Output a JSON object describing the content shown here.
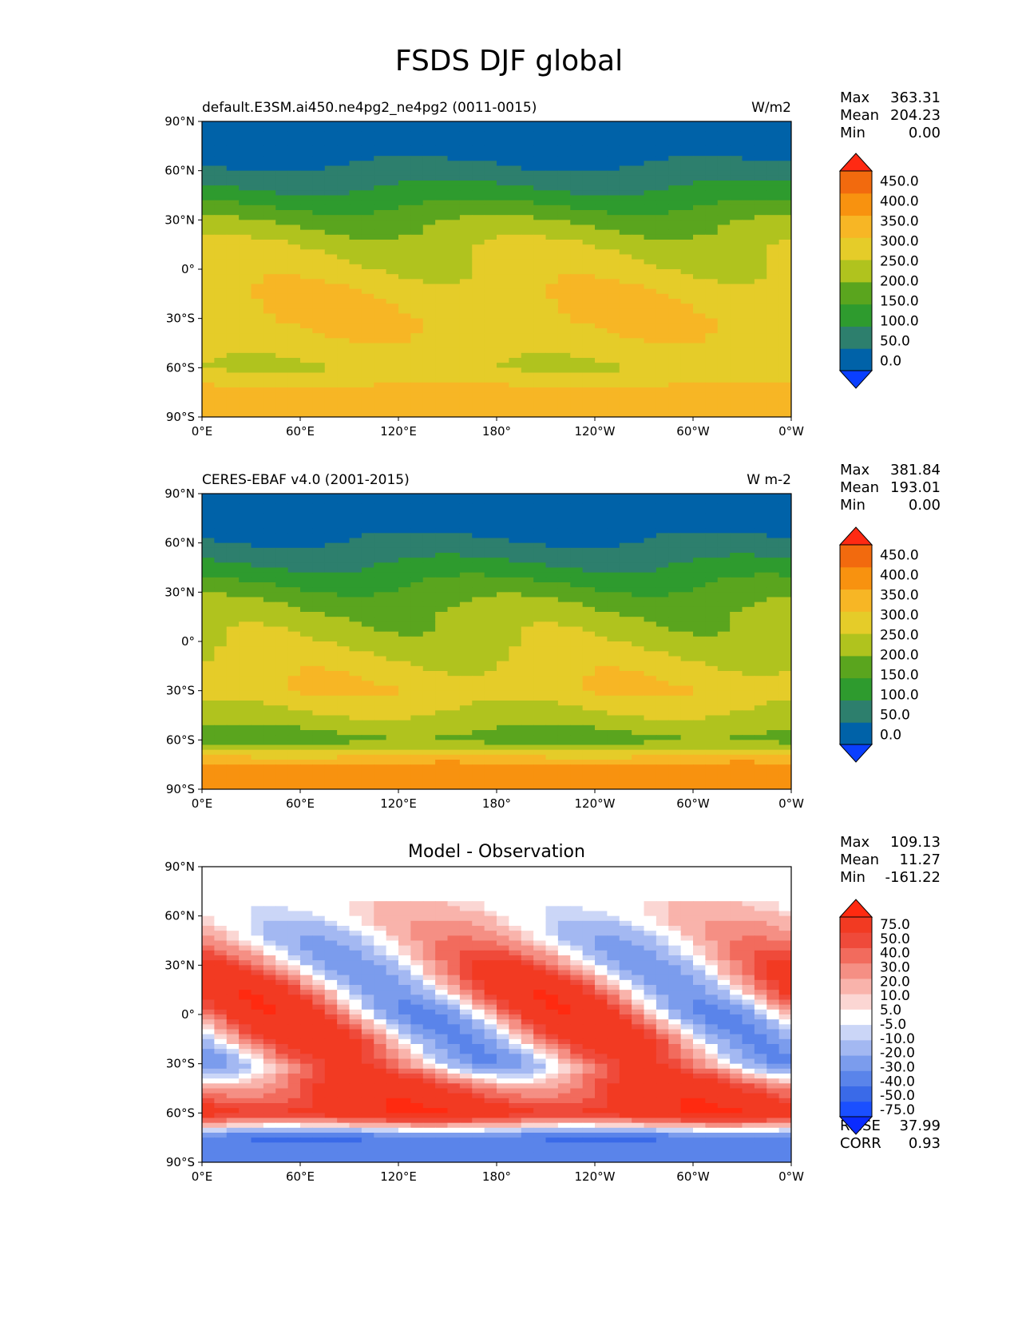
{
  "suptitle": "FSDS DJF global",
  "chart_data": [
    {
      "type": "heatmap",
      "subtype": "filled-contour-map",
      "title_left": "default.E3SM.ai450.ne4pg2_ne4pg2 (0011-0015)",
      "title_right": "W/m2",
      "projection": "PlateCarree",
      "xlim": [
        0,
        360
      ],
      "ylim": [
        -90,
        90
      ],
      "x_ticks": [
        "0°E",
        "60°E",
        "120°E",
        "180°",
        "120°W",
        "60°W",
        "0°W"
      ],
      "y_ticks": [
        "90°N",
        "60°N",
        "30°N",
        "0°",
        "30°S",
        "60°S",
        "90°S"
      ],
      "stats": {
        "labels": [
          "Max",
          "Mean",
          "Min"
        ],
        "values": [
          "363.31",
          "204.23",
          "0.00"
        ]
      },
      "colorbar": {
        "extend": "both",
        "levels": [
          "0.0",
          "50.0",
          "100.0",
          "150.0",
          "200.0",
          "250.0",
          "300.0",
          "350.0",
          "400.0",
          "450.0"
        ],
        "colors": [
          "#0a3fff",
          "#0062a8",
          "#2d7f6d",
          "#2e9b2e",
          "#5aa51e",
          "#b0c31e",
          "#e5cc29",
          "#f7b625",
          "#f8920f",
          "#f26a0e",
          "#ff2a13"
        ]
      },
      "zonal_mean_profile": {
        "lat": [
          90,
          75,
          60,
          45,
          30,
          15,
          0,
          -15,
          -30,
          -45,
          -60,
          -75,
          -90
        ],
        "value": [
          0,
          25,
          60,
          120,
          190,
          240,
          265,
          290,
          300,
          280,
          250,
          320,
          340
        ]
      }
    },
    {
      "type": "heatmap",
      "subtype": "filled-contour-map",
      "title_left": "CERES-EBAF v4.0 (2001-2015)",
      "title_right": "W m-2",
      "projection": "PlateCarree",
      "xlim": [
        0,
        360
      ],
      "ylim": [
        -90,
        90
      ],
      "x_ticks": [
        "0°E",
        "60°E",
        "120°E",
        "180°",
        "120°W",
        "60°W",
        "0°W"
      ],
      "y_ticks": [
        "90°N",
        "60°N",
        "30°N",
        "0°",
        "30°S",
        "60°S",
        "90°S"
      ],
      "stats": {
        "labels": [
          "Max",
          "Mean",
          "Min"
        ],
        "values": [
          "381.84",
          "193.01",
          "0.00"
        ]
      },
      "colorbar": {
        "extend": "both",
        "levels": [
          "0.0",
          "50.0",
          "100.0",
          "150.0",
          "200.0",
          "250.0",
          "300.0",
          "350.0",
          "400.0",
          "450.0"
        ],
        "colors": [
          "#0a3fff",
          "#0062a8",
          "#2d7f6d",
          "#2e9b2e",
          "#5aa51e",
          "#b0c31e",
          "#e5cc29",
          "#f7b625",
          "#f8920f",
          "#f26a0e",
          "#ff2a13"
        ]
      },
      "zonal_mean_profile": {
        "lat": [
          90,
          75,
          60,
          45,
          30,
          15,
          0,
          -15,
          -30,
          -45,
          -60,
          -75,
          -90
        ],
        "value": [
          0,
          20,
          55,
          110,
          170,
          215,
          235,
          270,
          290,
          240,
          180,
          360,
          370
        ]
      }
    },
    {
      "type": "heatmap",
      "subtype": "filled-contour-map",
      "title_center": "Model - Observation",
      "projection": "PlateCarree",
      "xlim": [
        0,
        360
      ],
      "ylim": [
        -90,
        90
      ],
      "x_ticks": [
        "0°E",
        "60°E",
        "120°E",
        "180°",
        "120°W",
        "60°W",
        "0°W"
      ],
      "y_ticks": [
        "90°N",
        "60°N",
        "30°N",
        "0°",
        "30°S",
        "60°S",
        "90°S"
      ],
      "stats": {
        "labels": [
          "Max",
          "Mean",
          "Min"
        ],
        "values": [
          "109.13",
          "11.27",
          "-161.22"
        ]
      },
      "metrics": {
        "labels": [
          "RMSE",
          "CORR"
        ],
        "values": [
          "37.99",
          "0.93"
        ]
      },
      "colorbar": {
        "extend": "both",
        "levels": [
          "-75.0",
          "-50.0",
          "-40.0",
          "-30.0",
          "-20.0",
          "-10.0",
          "-5.0",
          "5.0",
          "10.0",
          "20.0",
          "30.0",
          "40.0",
          "50.0",
          "75.0"
        ],
        "colors": [
          "#0a2bff",
          "#1a4fff",
          "#3a6ae8",
          "#5a84ea",
          "#7b9ced",
          "#a3b8f2",
          "#cbd6f7",
          "#ffffff",
          "#fbd6d3",
          "#f9b3ab",
          "#f58f84",
          "#f26b5d",
          "#ef4a3a",
          "#f23a22",
          "#ff2a10"
        ]
      },
      "zonal_mean_profile": {
        "lat": [
          90,
          75,
          60,
          45,
          30,
          15,
          0,
          -15,
          -30,
          -45,
          -60,
          -75,
          -90
        ],
        "value": [
          0,
          3,
          5,
          5,
          15,
          25,
          20,
          20,
          10,
          45,
          65,
          -40,
          -30
        ]
      }
    }
  ]
}
